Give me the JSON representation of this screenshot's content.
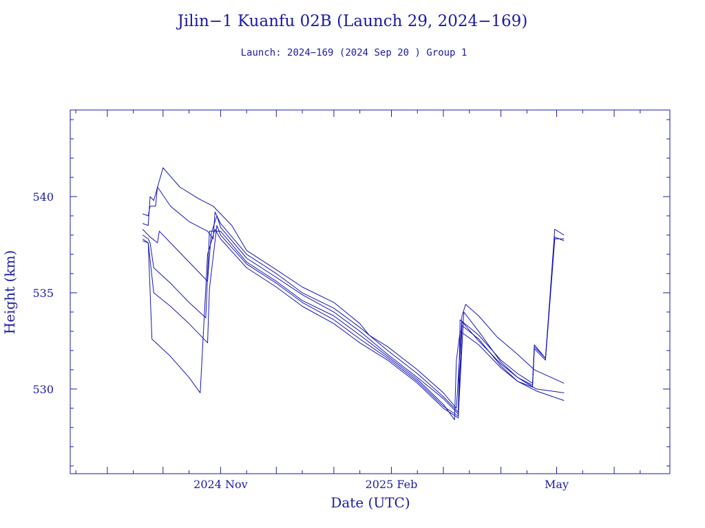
{
  "colors": {
    "ink": "#1a1aa6",
    "series": "#1414b4",
    "background": "#ffffff"
  },
  "chart_data": {
    "type": "line",
    "title": "Jilin−1 Kuanfu 02B (Launch 29, 2024−169)",
    "subtitle": "Launch: 2024−169  (2024 Sep 20 )  Group 1",
    "xlabel": "Date (UTC)",
    "ylabel": "Height (km)",
    "x_type": "date",
    "xlim": [
      "2024-08-12",
      "2025-07-01"
    ],
    "ylim": [
      525.6,
      544.5
    ],
    "x_ticks": [
      {
        "date": "2024-11-01",
        "label": "2024 Nov"
      },
      {
        "date": "2025-02-01",
        "label": "2025 Feb"
      },
      {
        "date": "2025-05-01",
        "label": "May"
      }
    ],
    "y_ticks": [
      {
        "value": 530,
        "label": "530"
      },
      {
        "value": 535,
        "label": "535"
      },
      {
        "value": 540,
        "label": "540"
      }
    ],
    "grid": false,
    "legend": "none",
    "series": [
      {
        "points": [
          [
            "2024-09-20",
            538.6
          ],
          [
            "2024-09-23",
            538.5
          ],
          [
            "2024-09-24",
            540.0
          ],
          [
            "2024-09-26",
            539.8
          ],
          [
            "2024-10-01",
            541.5
          ],
          [
            "2024-10-10",
            540.5
          ],
          [
            "2024-10-20",
            539.9
          ],
          [
            "2024-10-28",
            539.5
          ],
          [
            "2024-11-07",
            538.5
          ],
          [
            "2024-11-15",
            537.2
          ],
          [
            "2024-12-01",
            536.2
          ],
          [
            "2024-12-15",
            535.3
          ],
          [
            "2025-01-01",
            534.5
          ],
          [
            "2025-01-15",
            533.4
          ],
          [
            "2025-01-20",
            532.8
          ],
          [
            "2025-01-30",
            532.2
          ],
          [
            "2025-02-15",
            531.0
          ],
          [
            "2025-03-01",
            529.8
          ],
          [
            "2025-03-08",
            529.0
          ],
          [
            "2025-03-11",
            533.8
          ],
          [
            "2025-03-13",
            534.4
          ],
          [
            "2025-03-20",
            533.8
          ],
          [
            "2025-03-30",
            532.7
          ],
          [
            "2025-04-10",
            531.8
          ],
          [
            "2025-04-19",
            531.0
          ],
          [
            "2025-05-05",
            530.3
          ]
        ]
      },
      {
        "points": [
          [
            "2024-09-20",
            539.1
          ],
          [
            "2024-09-23",
            539.0
          ],
          [
            "2024-09-24",
            539.5
          ],
          [
            "2024-09-27",
            539.5
          ],
          [
            "2024-09-28",
            540.5
          ],
          [
            "2024-10-05",
            539.5
          ],
          [
            "2024-10-15",
            538.7
          ],
          [
            "2024-10-25",
            538.2
          ],
          [
            "2024-10-28",
            537.8
          ],
          [
            "2024-10-29",
            539.2
          ],
          [
            "2024-11-01",
            538.6
          ],
          [
            "2024-11-15",
            537.0
          ],
          [
            "2024-12-01",
            536.0
          ],
          [
            "2024-12-15",
            535.0
          ],
          [
            "2025-01-01",
            534.2
          ],
          [
            "2025-01-15",
            533.2
          ],
          [
            "2025-01-30",
            532.0
          ],
          [
            "2025-02-15",
            530.8
          ],
          [
            "2025-03-01",
            529.6
          ],
          [
            "2025-03-09",
            528.8
          ],
          [
            "2025-03-10",
            533.6
          ],
          [
            "2025-03-20",
            532.8
          ],
          [
            "2025-04-01",
            531.5
          ],
          [
            "2025-04-10",
            530.8
          ],
          [
            "2025-04-18",
            530.3
          ],
          [
            "2025-04-19",
            532.3
          ],
          [
            "2025-04-25",
            531.6
          ],
          [
            "2025-04-30",
            538.3
          ],
          [
            "2025-05-05",
            538.0
          ]
        ]
      },
      {
        "points": [
          [
            "2024-09-20",
            538.3
          ],
          [
            "2024-09-24",
            537.9
          ],
          [
            "2024-09-28",
            537.6
          ],
          [
            "2024-09-29",
            538.2
          ],
          [
            "2024-10-05",
            537.6
          ],
          [
            "2024-10-15",
            536.6
          ],
          [
            "2024-10-25",
            535.6
          ],
          [
            "2024-10-27",
            538.1
          ],
          [
            "2024-10-30",
            539.0
          ],
          [
            "2024-11-01",
            538.4
          ],
          [
            "2024-11-15",
            536.8
          ],
          [
            "2024-12-01",
            535.8
          ],
          [
            "2024-12-15",
            534.9
          ],
          [
            "2025-01-01",
            534.0
          ],
          [
            "2025-01-15",
            533.0
          ],
          [
            "2025-01-30",
            531.8
          ],
          [
            "2025-02-15",
            530.6
          ],
          [
            "2025-03-01",
            529.5
          ],
          [
            "2025-03-09",
            528.7
          ],
          [
            "2025-03-11",
            533.5
          ],
          [
            "2025-03-20",
            532.5
          ],
          [
            "2025-04-01",
            531.3
          ],
          [
            "2025-04-10",
            530.6
          ],
          [
            "2025-04-18",
            530.2
          ],
          [
            "2025-04-19",
            532.2
          ],
          [
            "2025-04-25",
            531.6
          ],
          [
            "2025-04-30",
            537.9
          ],
          [
            "2025-05-05",
            537.7
          ]
        ]
      },
      {
        "points": [
          [
            "2024-09-20",
            538.0
          ],
          [
            "2024-09-23",
            537.8
          ],
          [
            "2024-09-24",
            537.6
          ],
          [
            "2024-09-26",
            536.3
          ],
          [
            "2024-10-05",
            535.5
          ],
          [
            "2024-10-15",
            534.5
          ],
          [
            "2024-10-24",
            533.7
          ],
          [
            "2024-10-26",
            538.2
          ],
          [
            "2024-11-01",
            538.2
          ],
          [
            "2024-11-15",
            536.6
          ],
          [
            "2024-12-01",
            535.6
          ],
          [
            "2024-12-15",
            534.6
          ],
          [
            "2025-01-01",
            533.8
          ],
          [
            "2025-01-15",
            532.8
          ],
          [
            "2025-01-30",
            531.7
          ],
          [
            "2025-02-15",
            530.5
          ],
          [
            "2025-03-01",
            529.2
          ],
          [
            "2025-03-07",
            528.4
          ],
          [
            "2025-03-08",
            531.5
          ],
          [
            "2025-03-10",
            533.0
          ],
          [
            "2025-03-20",
            532.3
          ],
          [
            "2025-04-01",
            531.1
          ],
          [
            "2025-04-10",
            530.4
          ],
          [
            "2025-04-18",
            530.1
          ],
          [
            "2025-04-19",
            532.1
          ],
          [
            "2025-04-25",
            531.5
          ],
          [
            "2025-04-30",
            537.8
          ],
          [
            "2025-05-05",
            537.8
          ]
        ]
      },
      {
        "points": [
          [
            "2024-09-20",
            537.7
          ],
          [
            "2024-09-23",
            537.6
          ],
          [
            "2024-09-26",
            535.0
          ],
          [
            "2024-10-05",
            534.3
          ],
          [
            "2024-10-15",
            533.4
          ],
          [
            "2024-10-25",
            532.4
          ],
          [
            "2024-10-26",
            535.2
          ],
          [
            "2024-10-30",
            538.5
          ],
          [
            "2024-11-01",
            538.0
          ],
          [
            "2024-11-15",
            536.5
          ],
          [
            "2024-12-01",
            535.5
          ],
          [
            "2024-12-15",
            534.5
          ],
          [
            "2025-01-01",
            533.6
          ],
          [
            "2025-01-15",
            532.6
          ],
          [
            "2025-01-30",
            531.6
          ],
          [
            "2025-02-15",
            530.4
          ],
          [
            "2025-03-01",
            529.1
          ],
          [
            "2025-03-09",
            528.6
          ],
          [
            "2025-03-12",
            534.0
          ],
          [
            "2025-03-20",
            533.0
          ],
          [
            "2025-04-01",
            531.4
          ],
          [
            "2025-04-10",
            530.6
          ],
          [
            "2025-04-20",
            530.0
          ],
          [
            "2025-05-05",
            529.8
          ]
        ]
      },
      {
        "points": [
          [
            "2024-09-20",
            537.8
          ],
          [
            "2024-09-23",
            537.6
          ],
          [
            "2024-09-25",
            532.6
          ],
          [
            "2024-10-05",
            531.7
          ],
          [
            "2024-10-15",
            530.6
          ],
          [
            "2024-10-21",
            529.8
          ],
          [
            "2024-10-25",
            537.0
          ],
          [
            "2024-10-29",
            538.3
          ],
          [
            "2024-11-01",
            537.8
          ],
          [
            "2024-11-15",
            536.3
          ],
          [
            "2024-12-01",
            535.3
          ],
          [
            "2024-12-15",
            534.3
          ],
          [
            "2025-01-01",
            533.4
          ],
          [
            "2025-01-15",
            532.4
          ],
          [
            "2025-01-30",
            531.5
          ],
          [
            "2025-02-15",
            530.3
          ],
          [
            "2025-03-01",
            529.0
          ],
          [
            "2025-03-09",
            528.5
          ],
          [
            "2025-03-11",
            533.3
          ],
          [
            "2025-03-20",
            532.6
          ],
          [
            "2025-04-01",
            531.2
          ],
          [
            "2025-04-10",
            530.4
          ],
          [
            "2025-04-20",
            529.9
          ],
          [
            "2025-05-05",
            529.4
          ]
        ]
      }
    ]
  }
}
